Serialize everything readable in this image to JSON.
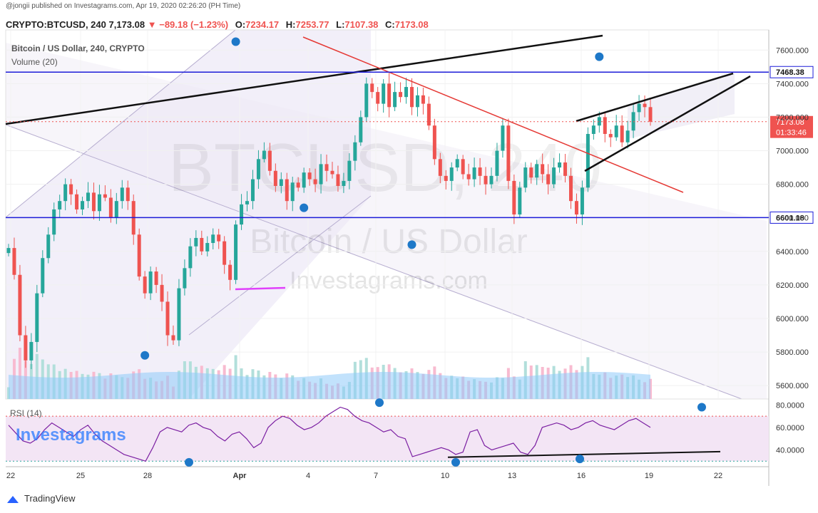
{
  "header": {
    "published_line": "@jongii published on Investagrams.com, Apr 19, 2020 02:26:20 (PH Time)",
    "symbol": "CRYPTO:BTCUSD, 240",
    "last": "7,173.08",
    "change": "−89.18 (−1.23%)",
    "o_label": "O:",
    "o_value": "7234.17",
    "h_label": "H:",
    "h_value": "7253.77",
    "l_label": "L:",
    "l_value": "7107.38",
    "c_label": "C:",
    "c_value": "7173.08"
  },
  "legend": {
    "title": "Bitcoin / US Dollar, 240, CRYPTO",
    "volume": "Volume (20)",
    "rsi": "RSI (14)"
  },
  "watermark": {
    "symbol": "BTCUSD, 240",
    "name": "Bitcoin / US Dollar",
    "site": "Investagrams.com",
    "brand": "Investagrams"
  },
  "footer": {
    "brand": "TradingView"
  },
  "colors": {
    "up": "#26a69a",
    "down": "#ef5350",
    "hline": "#1c1cd8",
    "trend_red": "#e53935",
    "rsi_line": "#7b1fa2",
    "rsi_band": "#f3e5f5",
    "marker": "#1e78c8",
    "volume": "#90caf9"
  },
  "chart_data": [
    {
      "type": "candlestick",
      "title": "Bitcoin / US Dollar, 240, CRYPTO",
      "x_tick_labels": [
        "22",
        "25",
        "28",
        "Apr",
        "4",
        "7",
        "10",
        "13",
        "16",
        "19",
        "22"
      ],
      "y_tick_labels": [
        "5600.000",
        "5800.000",
        "6000.000",
        "6200.000",
        "6400.000",
        "6600.000",
        "6800.000",
        "7000.000",
        "7200.000",
        "7400.000",
        "7600.000"
      ],
      "ylim": [
        5520,
        7720
      ],
      "horizontal_lines": [
        {
          "label": "7468.38",
          "value": 7468.38
        },
        {
          "label": "6601.18",
          "value": 6601.18
        }
      ],
      "price_tags": [
        {
          "label": "7173.08",
          "value": 7173.08,
          "style": "last"
        },
        {
          "label": "01:33:46",
          "value": 7110,
          "style": "timer"
        }
      ],
      "close_series": [
        6420,
        6260,
        5900,
        5750,
        5860,
        6150,
        6360,
        6500,
        6650,
        6700,
        6800,
        6740,
        6650,
        6700,
        6750,
        6640,
        6740,
        6720,
        6600,
        6700,
        6780,
        6700,
        6500,
        6250,
        6150,
        6280,
        6200,
        6100,
        5900,
        5870,
        6180,
        6300,
        6430,
        6480,
        6400,
        6450,
        6500,
        6460,
        6320,
        6230,
        6560,
        6680,
        6700,
        6830,
        6950,
        7000,
        6880,
        6790,
        6830,
        6700,
        6810,
        6780,
        6870,
        6830,
        6800,
        6920,
        6880,
        6860,
        6790,
        6820,
        6940,
        7050,
        7200,
        7400,
        7350,
        7280,
        7400,
        7260,
        7350,
        7320,
        7380,
        7260,
        7330,
        7280,
        7150,
        6950,
        6850,
        6820,
        6900,
        6950,
        6860,
        6830,
        6900,
        6850,
        6800,
        6850,
        7000,
        7150,
        6820,
        6620,
        6780,
        6900,
        6840,
        6920,
        6860,
        6800,
        6900,
        6930,
        6850,
        6700,
        6620,
        6780,
        7100,
        7150,
        7200,
        7100,
        7080,
        7150,
        7050,
        7120,
        7230,
        7280,
        7260,
        7173.08
      ],
      "markers": [
        {
          "x_index": 40,
          "value": 7650
        },
        {
          "x_index": 52,
          "value": 6660
        },
        {
          "x_index": 71,
          "value": 6440
        },
        {
          "x_index": 24,
          "value": 5780
        },
        {
          "x_index": 104,
          "value": 7560
        }
      ]
    },
    {
      "type": "line",
      "title": "RSI (14)",
      "y_tick_labels": [
        "40.0000",
        "60.0000",
        "80.0000"
      ],
      "ylim": [
        27,
        84
      ],
      "bands": [
        30,
        70
      ],
      "values": [
        62,
        55,
        48,
        46,
        50,
        58,
        64,
        60,
        56,
        52,
        58,
        62,
        54,
        48,
        44,
        40,
        36,
        34,
        32,
        30,
        42,
        56,
        60,
        58,
        56,
        62,
        64,
        60,
        58,
        52,
        48,
        54,
        56,
        50,
        42,
        46,
        60,
        66,
        70,
        68,
        62,
        58,
        60,
        64,
        70,
        74,
        78,
        76,
        70,
        66,
        64,
        60,
        56,
        58,
        52,
        50,
        34,
        36,
        38,
        40,
        42,
        40,
        36,
        38,
        56,
        58,
        44,
        40,
        42,
        44,
        46,
        38,
        36,
        44,
        60,
        62,
        64,
        62,
        58,
        60,
        64,
        66,
        62,
        60,
        58,
        62,
        66,
        68,
        64,
        60
      ]
    }
  ]
}
